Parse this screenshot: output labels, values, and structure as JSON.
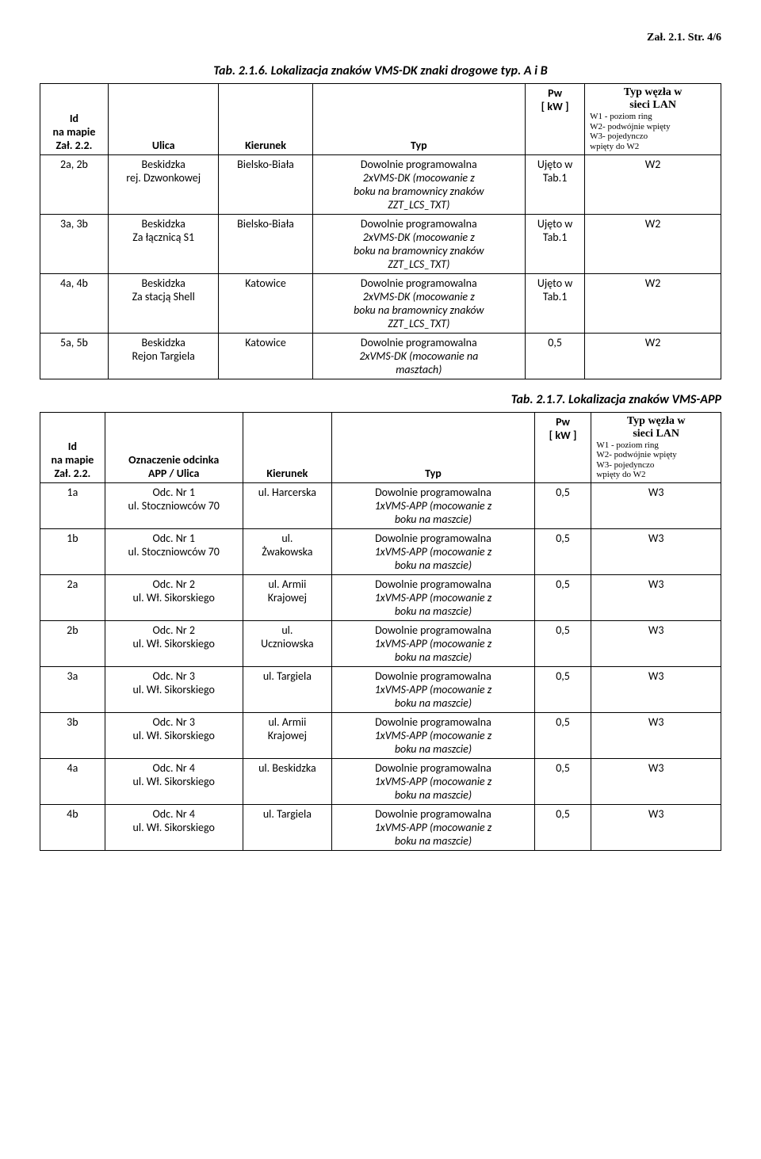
{
  "page_header": "Zał. 2.1.  Str. 4/6",
  "table1": {
    "caption": "Tab. 2.1.6. Lokalizacja znaków VMS-DK znaki drogowe typ. A i B",
    "headers": {
      "id_l1": "Id",
      "id_l2": "na mapie",
      "id_l3": "Zał. 2.2.",
      "ulica": "Ulica",
      "kierunek": "Kierunek",
      "typ": "Typ",
      "pw_l1": "Pw",
      "pw_l2": "[ kW ]",
      "lan_l1": "Typ węzła w",
      "lan_l2": "sieci LAN",
      "lan_sub1": "W1 - poziom ring",
      "lan_sub2": "W2- podwójnie wpięty",
      "lan_sub3": "W3- pojedynczo",
      "lan_sub4": "wpięty do W2"
    },
    "rows": [
      {
        "id": "2a, 2b",
        "ulica_l1": "Beskidzka",
        "ulica_l2": "rej. Dzwonkowej",
        "kierunek": "Bielsko-Biała",
        "typ_l1": "Dowolnie programowalna",
        "typ_l2": "2xVMS-DK (mocowanie z",
        "typ_l3": "boku na bramownicy znaków",
        "typ_l4": "ZZT_LCS_TXT)",
        "pw_l1": "Ujęto w",
        "pw_l2": "Tab.1",
        "lan": "W2"
      },
      {
        "id": "3a, 3b",
        "ulica_l1": "Beskidzka",
        "ulica_l2": "Za łącznicą S1",
        "kierunek": "Bielsko-Biała",
        "typ_l1": "Dowolnie programowalna",
        "typ_l2": "2xVMS-DK (mocowanie z",
        "typ_l3": "boku na bramownicy znaków",
        "typ_l4": "ZZT_LCS_TXT)",
        "pw_l1": "Ujęto w",
        "pw_l2": "Tab.1",
        "lan": "W2"
      },
      {
        "id": "4a, 4b",
        "ulica_l1": "Beskidzka",
        "ulica_l2": "Za stacją Shell",
        "kierunek": "Katowice",
        "typ_l1": "Dowolnie programowalna",
        "typ_l2": "2xVMS-DK (mocowanie z",
        "typ_l3": "boku na bramownicy znaków",
        "typ_l4": "ZZT_LCS_TXT)",
        "pw_l1": "Ujęto w",
        "pw_l2": "Tab.1",
        "lan": "W2"
      },
      {
        "id": "5a, 5b",
        "ulica_l1": "Beskidzka",
        "ulica_l2": "Rejon Targiela",
        "kierunek": "Katowice",
        "typ_l1": "Dowolnie programowalna",
        "typ_l2": "2xVMS-DK (mocowanie na",
        "typ_l3": "masztach)",
        "typ_l4": "",
        "pw_l1": "0,5",
        "pw_l2": "",
        "lan": "W2"
      }
    ]
  },
  "table2": {
    "caption": "Tab. 2.1.7. Lokalizacja znaków VMS-APP",
    "headers": {
      "id_l1": "Id",
      "id_l2": "na mapie",
      "id_l3": "Zał. 2.2.",
      "ulica_l1": "Oznaczenie odcinka",
      "ulica_l2": "APP / Ulica",
      "kierunek": "Kierunek",
      "typ": "Typ",
      "pw_l1": "Pw",
      "pw_l2": "[ kW ]",
      "lan_l1": "Typ węzła w",
      "lan_l2": "sieci LAN",
      "lan_sub1": "W1 - poziom ring",
      "lan_sub2": "W2- podwójnie wpięty",
      "lan_sub3": "W3- pojedynczo",
      "lan_sub4": "wpięty do W2"
    },
    "rows": [
      {
        "id": "1a",
        "ulica_l1": "Odc. Nr 1",
        "ulica_l2": "ul. Stoczniowców 70",
        "kier_l1": "ul. Harcerska",
        "kier_l2": "",
        "typ_l1": "Dowolnie programowalna",
        "typ_l2": "1xVMS-APP (mocowanie z",
        "typ_l3": "boku na maszcie)",
        "pw": "0,5",
        "lan": "W3"
      },
      {
        "id": "1b",
        "ulica_l1": "Odc. Nr 1",
        "ulica_l2": "ul. Stoczniowców 70",
        "kier_l1": "ul.",
        "kier_l2": "Żwakowska",
        "typ_l1": "Dowolnie programowalna",
        "typ_l2": "1xVMS-APP (mocowanie z",
        "typ_l3": "boku na maszcie)",
        "pw": "0,5",
        "lan": "W3"
      },
      {
        "id": "2a",
        "ulica_l1": "Odc. Nr 2",
        "ulica_l2": "ul. Wł. Sikorskiego",
        "kier_l1": "ul. Armii",
        "kier_l2": "Krajowej",
        "typ_l1": "Dowolnie programowalna",
        "typ_l2": "1xVMS-APP (mocowanie z",
        "typ_l3": "boku na maszcie)",
        "pw": "0,5",
        "lan": "W3"
      },
      {
        "id": "2b",
        "ulica_l1": "Odc. Nr 2",
        "ulica_l2": "ul. Wł. Sikorskiego",
        "kier_l1": "ul.",
        "kier_l2": "Uczniowska",
        "typ_l1": "Dowolnie programowalna",
        "typ_l2": "1xVMS-APP (mocowanie z",
        "typ_l3": "boku na maszcie)",
        "pw": "0,5",
        "lan": "W3"
      },
      {
        "id": "3a",
        "ulica_l1": "Odc. Nr 3",
        "ulica_l2": "ul. Wł. Sikorskiego",
        "kier_l1": "ul. Targiela",
        "kier_l2": "",
        "typ_l1": "Dowolnie programowalna",
        "typ_l2": "1xVMS-APP (mocowanie z",
        "typ_l3": "boku na maszcie)",
        "pw": "0,5",
        "lan": "W3"
      },
      {
        "id": "3b",
        "ulica_l1": "Odc. Nr 3",
        "ulica_l2": "ul. Wł. Sikorskiego",
        "kier_l1": "ul. Armii",
        "kier_l2": "Krajowej",
        "typ_l1": "Dowolnie programowalna",
        "typ_l2": "1xVMS-APP (mocowanie z",
        "typ_l3": "boku na maszcie)",
        "pw": "0,5",
        "lan": "W3"
      },
      {
        "id": "4a",
        "ulica_l1": "Odc. Nr 4",
        "ulica_l2": "ul. Wł. Sikorskiego",
        "kier_l1": "ul. Beskidzka",
        "kier_l2": "",
        "typ_l1": "Dowolnie programowalna",
        "typ_l2": "1xVMS-APP (mocowanie z",
        "typ_l3": "boku na maszcie)",
        "pw": "0,5",
        "lan": "W3"
      },
      {
        "id": "4b",
        "ulica_l1": "Odc. Nr 4",
        "ulica_l2": "ul. Wł. Sikorskiego",
        "kier_l1": "ul. Targiela",
        "kier_l2": "",
        "typ_l1": "Dowolnie programowalna",
        "typ_l2": "1xVMS-APP (mocowanie z",
        "typ_l3": "boku na maszcie)",
        "pw": "0,5",
        "lan": "W3"
      }
    ]
  }
}
